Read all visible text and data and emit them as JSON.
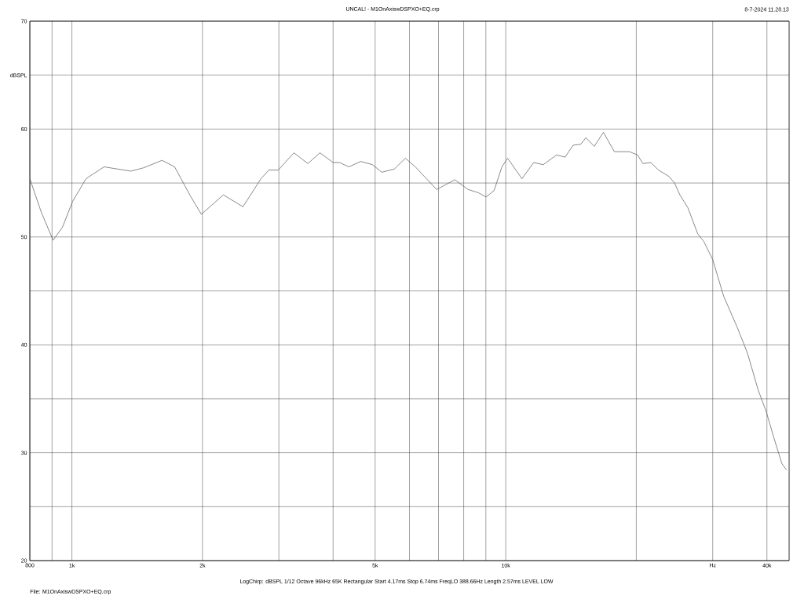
{
  "chart_data": {
    "type": "line",
    "title": "UNCAL! - M1OnAxiswDSPXO+EQ.crp",
    "annotations": [
      "8-7-2024 11.28.13",
      "LogChirp:  dBSPL   1/12 Octave   96kHz   65K   Rectangular   Start 4.17ms   Stop 6.74ms   FreqLO 388.66Hz   Length 2.57ms   LEVEL LOW",
      "File: M1OnAxiswDSPXO+EQ.crp"
    ],
    "log": "x",
    "grid": true,
    "marker": "none",
    "line_style": "solid",
    "xlim": [
      800,
      45000
    ],
    "ylim": [
      20,
      70
    ],
    "xticks": [
      {
        "value": 800,
        "label": "800"
      },
      {
        "value": 900,
        "label": null
      },
      {
        "value": 1000,
        "label": "1k"
      },
      {
        "value": 2000,
        "label": "2k"
      },
      {
        "value": 3000,
        "label": null
      },
      {
        "value": 4000,
        "label": null
      },
      {
        "value": 5000,
        "label": "5k"
      },
      {
        "value": 6000,
        "label": null
      },
      {
        "value": 7000,
        "label": null
      },
      {
        "value": 8000,
        "label": null
      },
      {
        "value": 9000,
        "label": null
      },
      {
        "value": 10000,
        "label": "10k"
      },
      {
        "value": 20000,
        "label": null
      },
      {
        "value": 30000,
        "label": "Hz"
      },
      {
        "value": 40000,
        "label": "40k"
      }
    ],
    "yticks": [
      20,
      {
        "value": 25,
        "label": null
      },
      30,
      {
        "value": 35,
        "label": null
      },
      40,
      {
        "value": 45,
        "label": null
      },
      50,
      {
        "value": 55,
        "label": null
      },
      60,
      {
        "value": 65,
        "label": "dBSPL"
      },
      70
    ],
    "series": [
      {
        "color": "#555555",
        "x": [
          800,
          850,
          905,
          951,
          1004,
          1078,
          1186,
          1366,
          1461,
          1614,
          1725,
          1876,
          1988,
          2234,
          2479,
          2728,
          2844,
          2990,
          3250,
          3500,
          3730,
          4000,
          4140,
          4350,
          4630,
          4930,
          5180,
          5540,
          5870,
          6190,
          6930,
          7630,
          8190,
          8650,
          9010,
          9400,
          9800,
          10100,
          10900,
          11600,
          12200,
          13100,
          13700,
          14300,
          14900,
          15300,
          16000,
          16800,
          17800,
          19300,
          20130,
          20720,
          21600,
          22500,
          23800,
          24500,
          25200,
          26300,
          27700,
          28600,
          30000,
          31800,
          34200,
          36100,
          38200,
          39800,
          41500,
          43300,
          44400
        ],
        "values": [
          55.4,
          52.3,
          49.7,
          50.9,
          53.3,
          55.4,
          56.5,
          56.1,
          56.4,
          57.1,
          56.5,
          53.8,
          52.1,
          53.9,
          52.8,
          55.4,
          56.2,
          56.2,
          57.8,
          56.8,
          57.8,
          56.9,
          56.9,
          56.5,
          57.0,
          56.7,
          56.0,
          56.3,
          57.3,
          56.5,
          54.4,
          55.3,
          54.4,
          54.1,
          53.7,
          54.3,
          56.5,
          57.3,
          55.4,
          56.9,
          56.7,
          57.6,
          57.4,
          58.5,
          58.6,
          59.2,
          58.4,
          59.7,
          57.9,
          57.9,
          57.6,
          56.8,
          56.9,
          56.2,
          55.6,
          55.0,
          53.9,
          52.7,
          50.3,
          49.6,
          47.9,
          44.5,
          41.6,
          39.2,
          35.8,
          33.9,
          31.4,
          29.0,
          28.4
        ]
      }
    ]
  }
}
